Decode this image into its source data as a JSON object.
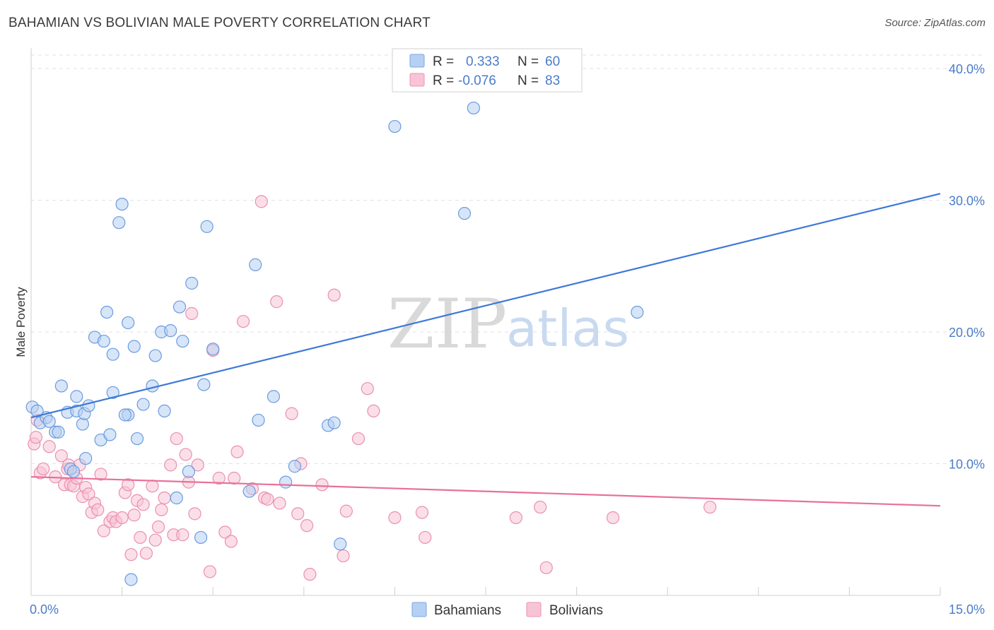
{
  "title": "BAHAMIAN VS BOLIVIAN MALE POVERTY CORRELATION CHART",
  "source": "Source: ZipAtlas.com",
  "watermark": {
    "zip": "ZIP",
    "atlas": "atlas"
  },
  "colors": {
    "bahamians": "#3d78d8",
    "bolivians": "#e8709a",
    "bahamians_fill": "#b6d0f3",
    "bolivians_fill": "#f8c4d5",
    "tick": "#4a7cc9"
  },
  "legend": {
    "rows": [
      {
        "r_label": "R =",
        "r_value": "0.333",
        "n_label": "N =",
        "n_value": "60"
      },
      {
        "r_label": "R =",
        "r_value": "-0.076",
        "n_label": "N =",
        "n_value": "83"
      }
    ]
  },
  "bottom_legend": [
    "Bahamians",
    "Bolivians"
  ],
  "chart_data": {
    "type": "scatter",
    "title": "BAHAMIAN VS BOLIVIAN MALE POVERTY CORRELATION CHART",
    "xlabel": "",
    "ylabel": "Male Poverty",
    "xlim": [
      0,
      15
    ],
    "ylim": [
      0,
      40
    ],
    "x_tick_labels": [
      "0.0%",
      "15.0%"
    ],
    "y_ticks": [
      10,
      20,
      30,
      40
    ],
    "y_tick_labels": [
      "10.0%",
      "20.0%",
      "30.0%",
      "40.0%"
    ],
    "grid": true,
    "legend_position": "top-center",
    "series": [
      {
        "name": "Bahamians",
        "trend": {
          "x": [
            0,
            15
          ],
          "y": [
            13.5,
            30.5
          ]
        },
        "points": [
          [
            0.02,
            14.3
          ],
          [
            0.15,
            13.1
          ],
          [
            0.25,
            13.5
          ],
          [
            0.3,
            13.2
          ],
          [
            0.4,
            12.4
          ],
          [
            0.5,
            15.9
          ],
          [
            0.6,
            13.9
          ],
          [
            0.65,
            9.6
          ],
          [
            0.7,
            9.4
          ],
          [
            0.75,
            14.0
          ],
          [
            0.75,
            15.1
          ],
          [
            0.85,
            13.0
          ],
          [
            0.88,
            13.8
          ],
          [
            0.9,
            10.4
          ],
          [
            0.95,
            14.4
          ],
          [
            1.05,
            19.6
          ],
          [
            1.15,
            11.8
          ],
          [
            1.2,
            19.3
          ],
          [
            1.25,
            21.5
          ],
          [
            1.3,
            12.2
          ],
          [
            1.35,
            15.4
          ],
          [
            1.35,
            18.3
          ],
          [
            1.45,
            28.3
          ],
          [
            1.5,
            29.7
          ],
          [
            1.6,
            13.7
          ],
          [
            1.6,
            20.7
          ],
          [
            1.65,
            1.2
          ],
          [
            1.7,
            18.9
          ],
          [
            1.75,
            11.9
          ],
          [
            1.85,
            14.5
          ],
          [
            2.0,
            15.9
          ],
          [
            2.05,
            18.2
          ],
          [
            2.15,
            20.0
          ],
          [
            2.2,
            14.0
          ],
          [
            2.3,
            20.1
          ],
          [
            2.4,
            7.4
          ],
          [
            2.45,
            21.9
          ],
          [
            2.5,
            19.3
          ],
          [
            2.6,
            9.4
          ],
          [
            2.65,
            23.7
          ],
          [
            2.8,
            4.4
          ],
          [
            2.85,
            16.0
          ],
          [
            2.9,
            28.0
          ],
          [
            3.0,
            18.7
          ],
          [
            3.6,
            7.9
          ],
          [
            3.7,
            25.1
          ],
          [
            3.75,
            13.3
          ],
          [
            4.0,
            15.1
          ],
          [
            4.2,
            8.6
          ],
          [
            4.35,
            9.8
          ],
          [
            4.9,
            12.9
          ],
          [
            5.0,
            13.1
          ],
          [
            5.1,
            3.9
          ],
          [
            6.0,
            35.6
          ],
          [
            7.15,
            29.0
          ],
          [
            7.3,
            37.0
          ],
          [
            10.0,
            21.5
          ],
          [
            0.1,
            14.0
          ],
          [
            1.55,
            13.7
          ],
          [
            0.45,
            12.4
          ]
        ]
      },
      {
        "name": "Bolivians",
        "trend": {
          "x": [
            0,
            15
          ],
          "y": [
            9.0,
            6.8
          ]
        },
        "points": [
          [
            0.05,
            11.5
          ],
          [
            0.08,
            12.0
          ],
          [
            0.1,
            13.3
          ],
          [
            0.15,
            9.3
          ],
          [
            0.2,
            9.6
          ],
          [
            0.3,
            11.3
          ],
          [
            0.4,
            9.0
          ],
          [
            0.5,
            10.6
          ],
          [
            0.55,
            8.4
          ],
          [
            0.6,
            9.6
          ],
          [
            0.62,
            9.9
          ],
          [
            0.65,
            8.4
          ],
          [
            0.7,
            8.3
          ],
          [
            0.75,
            8.9
          ],
          [
            0.8,
            9.9
          ],
          [
            0.85,
            7.5
          ],
          [
            0.9,
            8.2
          ],
          [
            0.95,
            7.7
          ],
          [
            1.0,
            6.3
          ],
          [
            1.05,
            7.0
          ],
          [
            1.1,
            6.5
          ],
          [
            1.15,
            9.2
          ],
          [
            1.2,
            4.9
          ],
          [
            1.3,
            5.6
          ],
          [
            1.35,
            5.9
          ],
          [
            1.4,
            5.6
          ],
          [
            1.5,
            5.9
          ],
          [
            1.55,
            7.8
          ],
          [
            1.6,
            8.4
          ],
          [
            1.65,
            3.1
          ],
          [
            1.7,
            6.1
          ],
          [
            1.75,
            7.2
          ],
          [
            1.8,
            4.4
          ],
          [
            1.85,
            6.9
          ],
          [
            1.9,
            3.2
          ],
          [
            2.0,
            8.3
          ],
          [
            2.05,
            4.2
          ],
          [
            2.1,
            5.2
          ],
          [
            2.15,
            6.5
          ],
          [
            2.2,
            7.4
          ],
          [
            2.3,
            9.9
          ],
          [
            2.35,
            4.6
          ],
          [
            2.4,
            11.9
          ],
          [
            2.5,
            4.6
          ],
          [
            2.55,
            10.7
          ],
          [
            2.6,
            8.6
          ],
          [
            2.65,
            21.4
          ],
          [
            2.7,
            6.2
          ],
          [
            2.75,
            9.9
          ],
          [
            2.95,
            1.8
          ],
          [
            3.0,
            18.6
          ],
          [
            3.1,
            8.9
          ],
          [
            3.2,
            4.8
          ],
          [
            3.3,
            4.1
          ],
          [
            3.35,
            8.9
          ],
          [
            3.4,
            10.9
          ],
          [
            3.5,
            20.8
          ],
          [
            3.65,
            8.1
          ],
          [
            3.8,
            29.9
          ],
          [
            3.85,
            7.4
          ],
          [
            3.9,
            7.3
          ],
          [
            4.05,
            22.3
          ],
          [
            4.1,
            7.0
          ],
          [
            4.3,
            13.8
          ],
          [
            4.4,
            6.2
          ],
          [
            4.45,
            10.0
          ],
          [
            4.55,
            5.3
          ],
          [
            4.6,
            1.6
          ],
          [
            4.8,
            8.4
          ],
          [
            5.0,
            22.8
          ],
          [
            5.15,
            3.0
          ],
          [
            5.2,
            6.4
          ],
          [
            5.4,
            11.9
          ],
          [
            5.55,
            15.7
          ],
          [
            5.65,
            14.0
          ],
          [
            6.0,
            5.9
          ],
          [
            6.45,
            6.3
          ],
          [
            6.5,
            4.4
          ],
          [
            8.0,
            5.9
          ],
          [
            8.4,
            6.7
          ],
          [
            8.5,
            2.1
          ],
          [
            9.6,
            5.9
          ],
          [
            11.2,
            6.7
          ]
        ]
      }
    ]
  }
}
